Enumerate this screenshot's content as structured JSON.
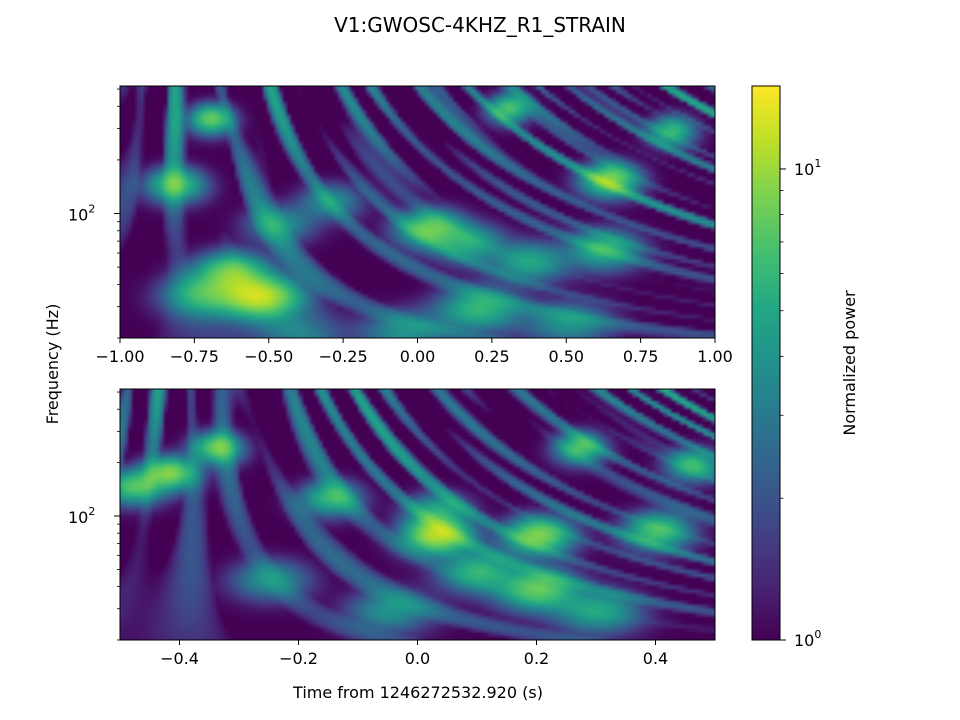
{
  "chart_data": {
    "type": "heatmap",
    "title": "V1:GWOSC-4KHZ_R1_STRAIN",
    "ylabel": "Frequency (Hz)",
    "colorbar": {
      "label": "Normalized power",
      "scale": "log",
      "range": [
        1,
        15
      ],
      "ticks": [
        {
          "value": 1,
          "base": "10",
          "exp": "0"
        },
        {
          "value": 10,
          "base": "10",
          "exp": "1"
        }
      ],
      "colormap": [
        "#440154",
        "#482475",
        "#414487",
        "#355f8d",
        "#2a788e",
        "#21918c",
        "#22a884",
        "#44bf70",
        "#7ad151",
        "#bddf26",
        "#fde725"
      ]
    },
    "panels": [
      {
        "xlim": [
          -1.0,
          1.0
        ],
        "ylim": [
          20,
          520
        ],
        "yscale": "log",
        "xticks": [
          -1.0,
          -0.75,
          -0.5,
          -0.25,
          0.0,
          0.25,
          0.5,
          0.75,
          1.0
        ],
        "xticklabels": [
          "−1.00",
          "−0.75",
          "−0.50",
          "−0.25",
          "0.00",
          "0.25",
          "0.50",
          "0.75",
          "1.00"
        ],
        "yticks": [
          {
            "value": 100,
            "base": "10",
            "exp": "2"
          }
        ],
        "blobs": [
          {
            "t": -0.53,
            "f": 35,
            "p": 11
          },
          {
            "t": -0.63,
            "f": 48,
            "p": 8
          },
          {
            "t": -0.72,
            "f": 36,
            "p": 6
          },
          {
            "t": -0.82,
            "f": 150,
            "p": 7
          },
          {
            "t": -0.47,
            "f": 90,
            "p": 4
          },
          {
            "t": 0.04,
            "f": 85,
            "p": 8
          },
          {
            "t": 0.2,
            "f": 30,
            "p": 6
          },
          {
            "t": 0.17,
            "f": 70,
            "p": 5
          },
          {
            "t": 0.37,
            "f": 55,
            "p": 5
          },
          {
            "t": 0.62,
            "f": 65,
            "p": 6
          },
          {
            "t": 0.64,
            "f": 160,
            "p": 9
          },
          {
            "t": -0.4,
            "f": 22,
            "p": 3
          },
          {
            "t": -0.05,
            "f": 22,
            "p": 4
          },
          {
            "t": 0.5,
            "f": 25,
            "p": 4
          },
          {
            "t": -0.3,
            "f": 120,
            "p": 4
          },
          {
            "t": -0.7,
            "f": 350,
            "p": 8
          },
          {
            "t": 0.3,
            "f": 400,
            "p": 7
          },
          {
            "t": 0.85,
            "f": 300,
            "p": 6
          }
        ]
      },
      {
        "xlim": [
          -0.5,
          0.5
        ],
        "xlabel": "Time from 1246272532.920 (s)",
        "ylim": [
          20,
          520
        ],
        "yscale": "log",
        "xticks": [
          -0.4,
          -0.2,
          0.0,
          0.2,
          0.4
        ],
        "xticklabels": [
          "−0.4",
          "−0.2",
          "0.0",
          "0.2",
          "0.4"
        ],
        "yticks": [
          {
            "value": 100,
            "base": "10",
            "exp": "2"
          }
        ],
        "blobs": [
          {
            "t": 0.03,
            "f": 80,
            "p": 11
          },
          {
            "t": 0.2,
            "f": 80,
            "p": 9
          },
          {
            "t": 0.2,
            "f": 40,
            "p": 8
          },
          {
            "t": 0.1,
            "f": 50,
            "p": 6
          },
          {
            "t": 0.4,
            "f": 85,
            "p": 7
          },
          {
            "t": -0.42,
            "f": 180,
            "p": 9
          },
          {
            "t": -0.34,
            "f": 250,
            "p": 8
          },
          {
            "t": -0.48,
            "f": 150,
            "p": 7
          },
          {
            "t": 0.27,
            "f": 250,
            "p": 7
          },
          {
            "t": 0.03,
            "f": 110,
            "p": 5
          },
          {
            "t": -0.05,
            "f": 30,
            "p": 4
          },
          {
            "t": 0.3,
            "f": 30,
            "p": 5
          },
          {
            "t": -0.25,
            "f": 45,
            "p": 4
          },
          {
            "t": -0.15,
            "f": 130,
            "p": 6
          },
          {
            "t": 0.46,
            "f": 200,
            "p": 6
          }
        ]
      }
    ]
  }
}
